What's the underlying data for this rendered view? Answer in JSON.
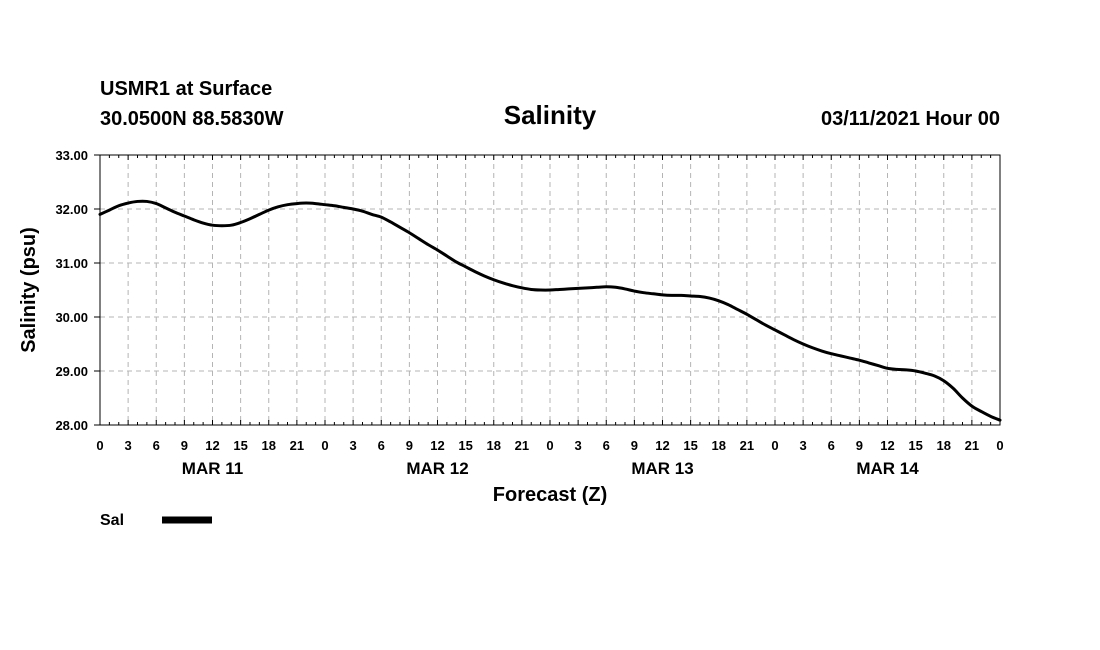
{
  "chart_data": {
    "type": "line",
    "title": "Salinity",
    "station": "USMR1 at Surface",
    "location": "30.0500N 88.5830W",
    "run_time": "03/11/2021 Hour 00",
    "xlabel": "Forecast (Z)",
    "ylabel": "Salinity (psu)",
    "ylim": [
      28,
      33
    ],
    "xlim": [
      0,
      96
    ],
    "grid": true,
    "y_ticks": [
      {
        "value": 28,
        "label": "28.00"
      },
      {
        "value": 29,
        "label": "29.00"
      },
      {
        "value": 30,
        "label": "30.00"
      },
      {
        "value": 31,
        "label": "31.00"
      },
      {
        "value": 32,
        "label": "32.00"
      },
      {
        "value": 33,
        "label": "33.00"
      }
    ],
    "x_ticks": [
      {
        "value": 0,
        "label": "0"
      },
      {
        "value": 3,
        "label": "3"
      },
      {
        "value": 6,
        "label": "6"
      },
      {
        "value": 9,
        "label": "9"
      },
      {
        "value": 12,
        "label": "12"
      },
      {
        "value": 15,
        "label": "15"
      },
      {
        "value": 18,
        "label": "18"
      },
      {
        "value": 21,
        "label": "21"
      },
      {
        "value": 24,
        "label": "0"
      },
      {
        "value": 27,
        "label": "3"
      },
      {
        "value": 30,
        "label": "6"
      },
      {
        "value": 33,
        "label": "9"
      },
      {
        "value": 36,
        "label": "12"
      },
      {
        "value": 39,
        "label": "15"
      },
      {
        "value": 42,
        "label": "18"
      },
      {
        "value": 45,
        "label": "21"
      },
      {
        "value": 48,
        "label": "0"
      },
      {
        "value": 51,
        "label": "3"
      },
      {
        "value": 54,
        "label": "6"
      },
      {
        "value": 57,
        "label": "9"
      },
      {
        "value": 60,
        "label": "12"
      },
      {
        "value": 63,
        "label": "15"
      },
      {
        "value": 66,
        "label": "18"
      },
      {
        "value": 69,
        "label": "21"
      },
      {
        "value": 72,
        "label": "0"
      },
      {
        "value": 75,
        "label": "3"
      },
      {
        "value": 78,
        "label": "6"
      },
      {
        "value": 81,
        "label": "9"
      },
      {
        "value": 84,
        "label": "12"
      },
      {
        "value": 87,
        "label": "15"
      },
      {
        "value": 90,
        "label": "18"
      },
      {
        "value": 93,
        "label": "21"
      },
      {
        "value": 96,
        "label": "0"
      }
    ],
    "date_labels": [
      {
        "value": 12,
        "label": "MAR 11"
      },
      {
        "value": 36,
        "label": "MAR 12"
      },
      {
        "value": 60,
        "label": "MAR 13"
      },
      {
        "value": 84,
        "label": "MAR 14"
      }
    ],
    "legend": {
      "label": "Sal",
      "position": "bottom-left"
    },
    "series": [
      {
        "name": "Sal",
        "color": "#000000",
        "x": [
          0,
          1,
          2,
          3,
          4,
          5,
          6,
          7,
          8,
          9,
          10,
          11,
          12,
          13,
          14,
          15,
          16,
          17,
          18,
          19,
          20,
          21,
          22,
          23,
          24,
          25,
          26,
          27,
          28,
          29,
          30,
          31,
          32,
          33,
          34,
          35,
          36,
          37,
          38,
          39,
          40,
          41,
          42,
          43,
          44,
          45,
          46,
          47,
          48,
          49,
          50,
          51,
          52,
          53,
          54,
          55,
          56,
          57,
          58,
          59,
          60,
          61,
          62,
          63,
          64,
          65,
          66,
          67,
          68,
          69,
          70,
          71,
          72,
          73,
          74,
          75,
          76,
          77,
          78,
          79,
          80,
          81,
          82,
          83,
          84,
          85,
          86,
          87,
          88,
          89,
          90,
          91,
          92,
          93,
          94,
          95,
          96
        ],
        "values": [
          31.9,
          31.98,
          32.06,
          32.11,
          32.14,
          32.14,
          32.1,
          32.02,
          31.94,
          31.87,
          31.8,
          31.74,
          31.7,
          31.69,
          31.7,
          31.75,
          31.82,
          31.9,
          31.98,
          32.04,
          32.08,
          32.1,
          32.11,
          32.1,
          32.08,
          32.06,
          32.03,
          32.0,
          31.96,
          31.9,
          31.85,
          31.76,
          31.66,
          31.56,
          31.45,
          31.34,
          31.24,
          31.13,
          31.02,
          30.93,
          30.84,
          30.76,
          30.69,
          30.63,
          30.58,
          30.54,
          30.51,
          30.5,
          30.5,
          30.51,
          30.52,
          30.53,
          30.54,
          30.55,
          30.56,
          30.55,
          30.52,
          30.48,
          30.45,
          30.43,
          30.41,
          30.4,
          30.4,
          30.39,
          30.38,
          30.35,
          30.3,
          30.23,
          30.14,
          30.05,
          29.95,
          29.85,
          29.76,
          29.67,
          29.58,
          29.5,
          29.43,
          29.37,
          29.32,
          29.28,
          29.24,
          29.2,
          29.15,
          29.1,
          29.05,
          29.03,
          29.02,
          29.0,
          28.96,
          28.91,
          28.82,
          28.68,
          28.5,
          28.35,
          28.25,
          28.16,
          28.09
        ]
      }
    ]
  }
}
